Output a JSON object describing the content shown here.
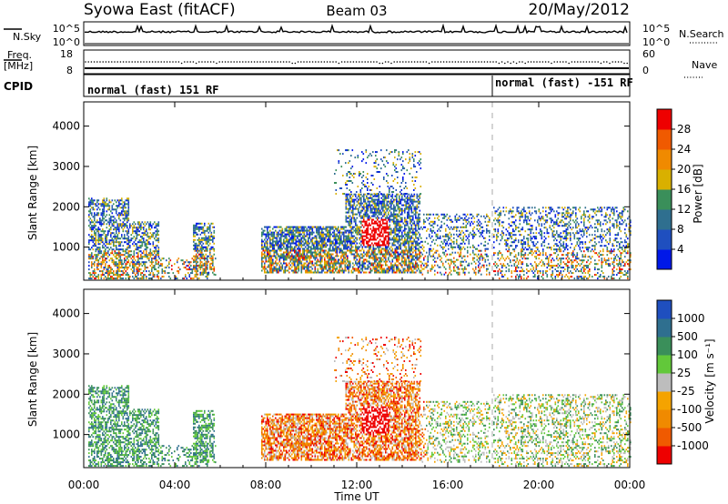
{
  "header": {
    "station": "Syowa East (fitACF)",
    "beam": "Beam 03",
    "date": "20/May/2012"
  },
  "nsky_panel": {
    "left_label": "N.Sky",
    "left_ticks": [
      "10^5",
      "10^0"
    ],
    "right_label": "N.Search",
    "right_ticks": [
      "10^5",
      "10^0"
    ]
  },
  "freq_panel": {
    "left_label_1": "Freq.",
    "left_label_2": "[MHz]",
    "left_ticks": [
      "18",
      "8"
    ],
    "right_label": "Nave",
    "right_ticks": [
      "60",
      "0"
    ]
  },
  "cpid_panel": {
    "label": "CPID",
    "segment_1": "normal (fast) 151 RF",
    "segment_2": "normal (fast) -151 RF"
  },
  "colors": {
    "power_scale": [
      "#0018e8",
      "#1f4fbf",
      "#2f6f8f",
      "#3a8f5a",
      "#d9b000",
      "#f08a00",
      "#f05a00",
      "#ee0000"
    ],
    "velocity_scale": [
      "#ee0000",
      "#f05a00",
      "#f08a00",
      "#f5a300",
      "#bdbdbd",
      "#62c83a",
      "#3a8f5a",
      "#2f6f8f",
      "#1f4fbf"
    ]
  },
  "chart_data": [
    {
      "type": "heatmap",
      "name": "power",
      "ylabel": "Slant Range [km]",
      "yticks": [
        "1000",
        "2000",
        "3000",
        "4000"
      ],
      "ylim": [
        180,
        4600
      ],
      "xlim": [
        "00:00",
        "24:00"
      ],
      "colorbar_label": "Power [dB]",
      "colorbar_ticks": [
        "4",
        "8",
        "12",
        "16",
        "20",
        "24",
        "28"
      ],
      "colorbar_range": [
        0,
        32
      ]
    },
    {
      "type": "heatmap",
      "name": "velocity",
      "ylabel": "Slant Range [km]",
      "yticks": [
        "1000",
        "2000",
        "3000",
        "4000"
      ],
      "ylim": [
        180,
        4600
      ],
      "xlim": [
        "00:00",
        "24:00"
      ],
      "colorbar_label": "Velocity [m s⁻¹]",
      "colorbar_ticks": [
        "-1000",
        "-500",
        "-100",
        "-25",
        "25",
        "100",
        "500",
        "1000"
      ]
    }
  ],
  "xaxis": {
    "label": "Time UT",
    "ticks": [
      "00:00",
      "04:00",
      "08:00",
      "12:00",
      "16:00",
      "20:00",
      "00:00"
    ]
  }
}
